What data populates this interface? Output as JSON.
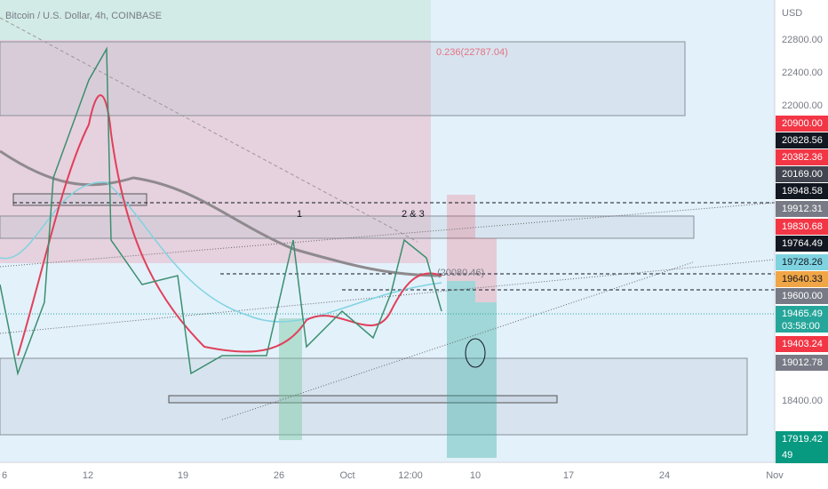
{
  "header": {
    "title": "Bitcoin / U.S. Dollar, 4h, COINBASE"
  },
  "price_axis": {
    "currency": "USD",
    "ticks": [
      "22800.00",
      "22400.00",
      "22000.00",
      "18400.00"
    ]
  },
  "price_tags": [
    {
      "label": "20900.00",
      "color": "#f23645"
    },
    {
      "label": "20828.56",
      "color": "#131722"
    },
    {
      "label": "20382.36",
      "color": "#f23645"
    },
    {
      "label": "20169.00",
      "color": "#434651"
    },
    {
      "label": "19948.58",
      "color": "#131722"
    },
    {
      "label": "19912.31",
      "color": "#787b86"
    },
    {
      "label": "19830.68",
      "color": "#f23645"
    },
    {
      "label": "19764.49",
      "color": "#131722"
    },
    {
      "label": "19728.26",
      "color": "#7fd3e0"
    },
    {
      "label": "19640.33",
      "color": "#f0a646"
    },
    {
      "label": "19600.00",
      "color": "#787b86"
    },
    {
      "label": "19465.49",
      "color": "#26a69a"
    },
    {
      "label": "19403.24",
      "color": "#f23645"
    },
    {
      "label": "19012.78",
      "color": "#787b86"
    },
    {
      "label": "17919.42",
      "color": "#089981"
    },
    {
      "label": "49",
      "color": "#089981"
    }
  ],
  "countdown": "03:58:00",
  "time_axis": {
    "labels": [
      "6",
      "12",
      "19",
      "26",
      "Oct",
      "12:00",
      "10",
      "17",
      "24",
      "Nov"
    ]
  },
  "annotations": {
    "fib": "0.236(22787.04)",
    "wave1": "1",
    "wave23": "2 & 3",
    "level": "(20080.46)"
  }
}
